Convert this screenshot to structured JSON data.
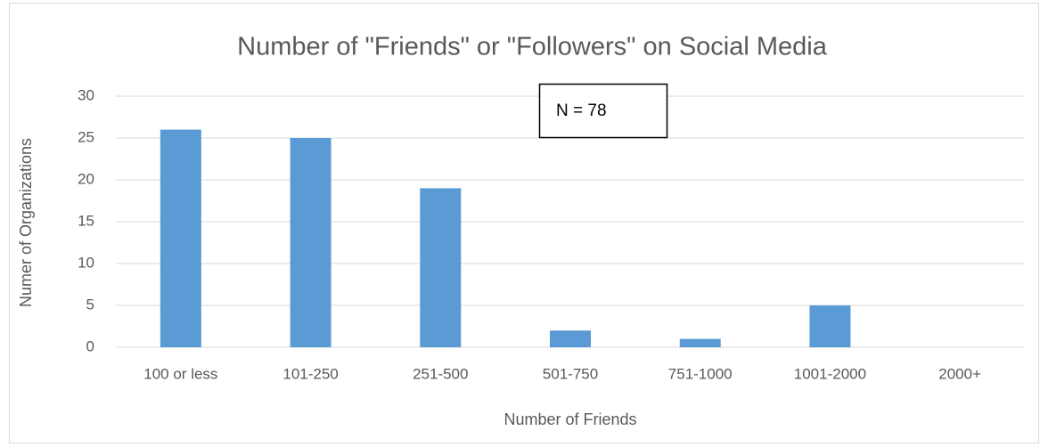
{
  "chart_data": {
    "type": "bar",
    "title": "Number of \"Friends\" or \"Followers\" on Social Media",
    "x_label": "Number of Friends",
    "y_label": "Numer of Organizations",
    "annotation": "N = 78",
    "categories": [
      "100 or less",
      "101-250",
      "251-500",
      "501-750",
      "751-1000",
      "1001-2000",
      "2000+"
    ],
    "values": [
      26,
      25,
      19,
      2,
      1,
      5,
      0
    ],
    "color": "#5b9bd5",
    "ylim": [
      0,
      30
    ],
    "yticks": [
      0,
      5,
      10,
      15,
      20,
      25,
      30
    ],
    "grid": true
  }
}
